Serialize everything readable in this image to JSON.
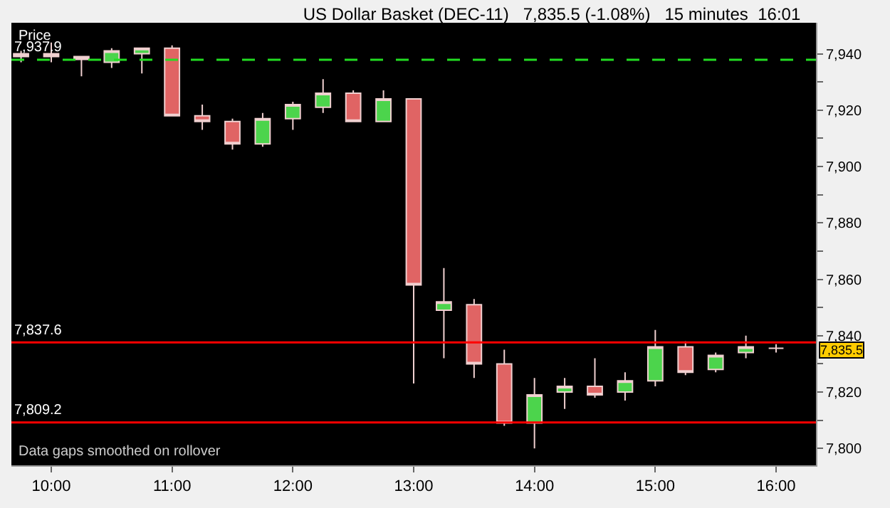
{
  "chart_data": {
    "type": "candlestick",
    "title": "US Dollar Basket (DEC-11)   7,835.5 (-1.08%)   15 minutes  16:01",
    "ylabel": "Price",
    "x": [
      9.75,
      10,
      10.25,
      10.5,
      10.75,
      11,
      11.25,
      11.5,
      11.75,
      12,
      12.25,
      12.5,
      12.75,
      13,
      13.25,
      13.5,
      13.75,
      14,
      14.25,
      14.5,
      14.75,
      15,
      15.25,
      15.5,
      15.75,
      16
    ],
    "ohlc": [
      [
        7939,
        7941,
        7937,
        7940
      ],
      [
        7940,
        7944,
        7937,
        7939
      ],
      [
        7939,
        7939,
        7932,
        7938
      ],
      [
        7937,
        7942,
        7935,
        7941
      ],
      [
        7940,
        7942,
        7933,
        7942
      ],
      [
        7942,
        7943,
        7918,
        7918
      ],
      [
        7918,
        7922,
        7913,
        7916
      ],
      [
        7916,
        7917,
        7906,
        7908
      ],
      [
        7908,
        7919,
        7907,
        7917
      ],
      [
        7917,
        7923,
        7913,
        7922
      ],
      [
        7921,
        7931,
        7919,
        7926
      ],
      [
        7926,
        7927,
        7916,
        7916
      ],
      [
        7916,
        7927,
        7916,
        7924
      ],
      [
        7924,
        7924,
        7823,
        7858
      ],
      [
        7849,
        7864,
        7832,
        7852
      ],
      [
        7851,
        7853,
        7825,
        7830
      ],
      [
        7830,
        7835,
        7808,
        7809
      ],
      [
        7809,
        7825,
        7800,
        7819
      ],
      [
        7820,
        7825,
        7814,
        7822
      ],
      [
        7822,
        7832,
        7818,
        7819
      ],
      [
        7820,
        7827,
        7817,
        7824
      ],
      [
        7824,
        7842,
        7822,
        7836
      ],
      [
        7836,
        7838,
        7826,
        7827
      ],
      [
        7828,
        7834,
        7827,
        7833
      ],
      [
        7834,
        7840,
        7832,
        7836
      ],
      [
        7835.5,
        7837,
        7834,
        7835.5
      ]
    ],
    "colors": [
      "#4cd44c",
      "#e06464",
      "#e06464",
      "#4cd44c",
      "#4cd44c",
      "#e06464",
      "#e06464",
      "#e06464",
      "#4cd44c",
      "#4cd44c",
      "#4cd44c",
      "#e06464",
      "#4cd44c",
      "#e06464",
      "#4cd44c",
      "#e06464",
      "#e06464",
      "#4cd44c",
      "#4cd44c",
      "#e06464",
      "#4cd44c",
      "#4cd44c",
      "#e06464",
      "#4cd44c",
      "#4cd44c",
      "#f0d0d0"
    ],
    "xlim": [
      9.67,
      16.33
    ],
    "xticks": [
      {
        "value": 10,
        "label": "10:00"
      },
      {
        "value": 11,
        "label": "11:00"
      },
      {
        "value": 12,
        "label": "12:00"
      },
      {
        "value": 13,
        "label": "13:00"
      },
      {
        "value": 14,
        "label": "14:00"
      },
      {
        "value": 15,
        "label": "15:00"
      },
      {
        "value": 16,
        "label": "16:00"
      }
    ],
    "ylim": [
      7794,
      7951
    ],
    "yticks": [
      {
        "value": 7800,
        "label": "7,800"
      },
      {
        "value": 7810,
        "label": null
      },
      {
        "value": 7820,
        "label": "7,820"
      },
      {
        "value": 7830,
        "label": null
      },
      {
        "value": 7840,
        "label": "7,840"
      },
      {
        "value": 7850,
        "label": null
      },
      {
        "value": 7860,
        "label": "7,860"
      },
      {
        "value": 7870,
        "label": null
      },
      {
        "value": 7880,
        "label": "7,880"
      },
      {
        "value": 7890,
        "label": null
      },
      {
        "value": 7900,
        "label": "7,900"
      },
      {
        "value": 7910,
        "label": null
      },
      {
        "value": 7920,
        "label": "7,920"
      },
      {
        "value": 7930,
        "label": null
      },
      {
        "value": 7940,
        "label": "7,940"
      }
    ],
    "ref_lines": [
      {
        "axis": "y",
        "value": 7937.9,
        "label": "7,937.9",
        "color": "#22dd22",
        "line_style": "dashed"
      },
      {
        "axis": "y",
        "value": 7837.6,
        "label": "7,837.6",
        "color": "#ff0000",
        "line_style": "solid"
      },
      {
        "axis": "y",
        "value": 7809.2,
        "label": "7,809.2",
        "color": "#ff0000",
        "line_style": "solid"
      }
    ],
    "annotations": [
      {
        "text": "7,835.5",
        "y": 7835.5
      },
      "Data gaps smoothed on rollover"
    ],
    "grid": false
  }
}
